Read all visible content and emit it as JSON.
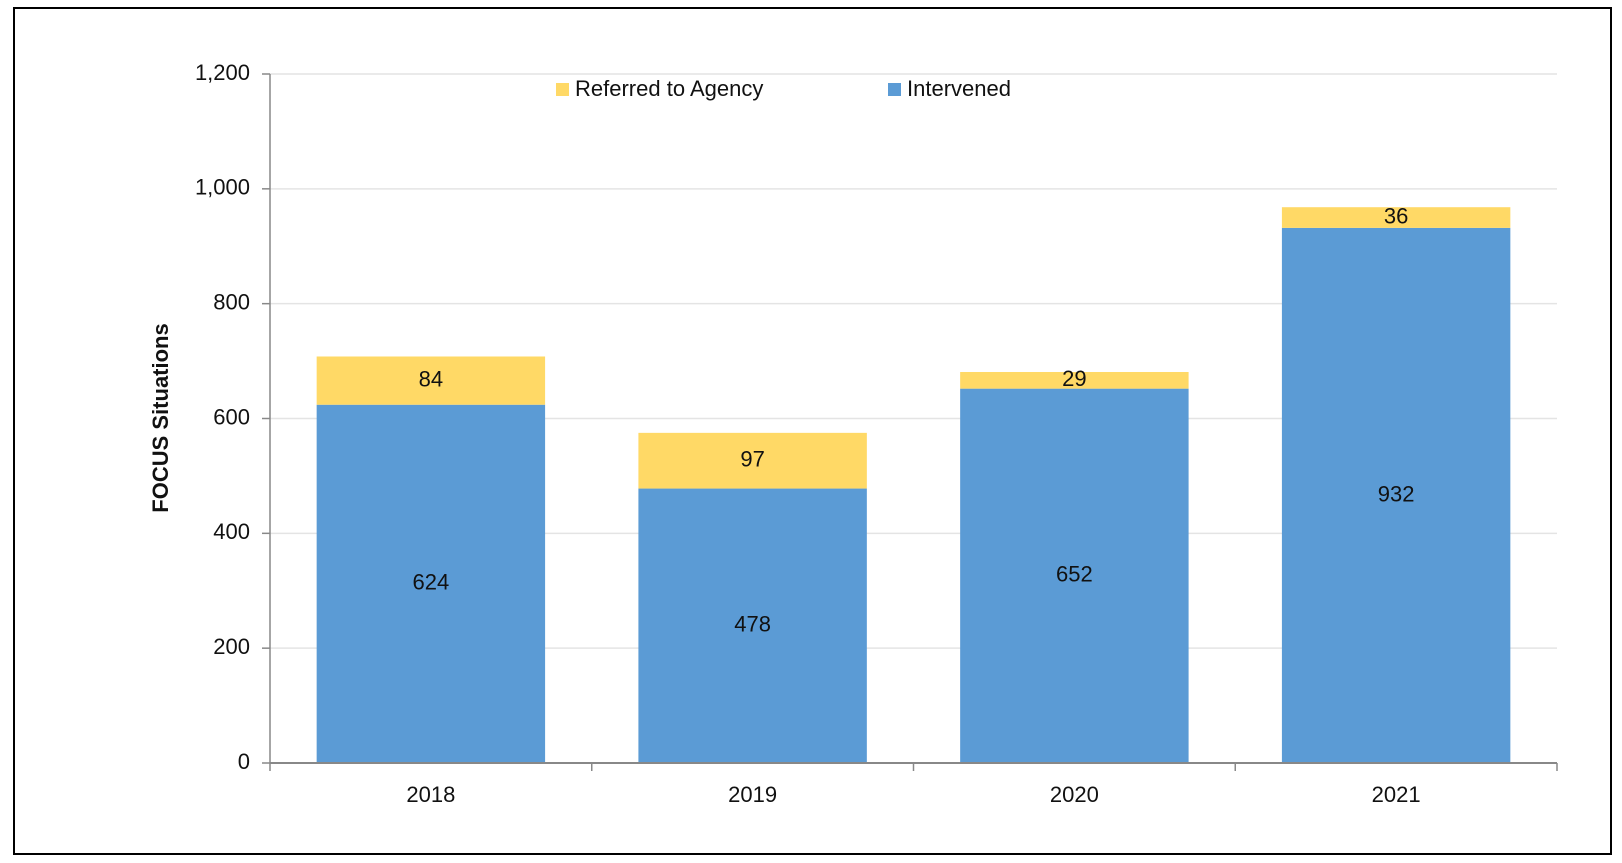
{
  "chart_data": {
    "type": "stacked_bar",
    "y_label": "FOCUS Situations",
    "categories": [
      "2018",
      "2019",
      "2020",
      "2021"
    ],
    "series": [
      {
        "name": "Intervened",
        "color": "#5b9bd5",
        "values": [
          624,
          478,
          652,
          932
        ]
      },
      {
        "name": "Referred to Agency",
        "color": "#ffd966",
        "values": [
          84,
          97,
          29,
          36
        ]
      }
    ],
    "ylim": [
      0,
      1200
    ],
    "yticks": [
      0,
      200,
      400,
      600,
      800,
      {
        "value": 1000,
        "label": "1,000"
      },
      {
        "value": 1200,
        "label": "1,200"
      }
    ],
    "grid": true,
    "legend": "top"
  }
}
